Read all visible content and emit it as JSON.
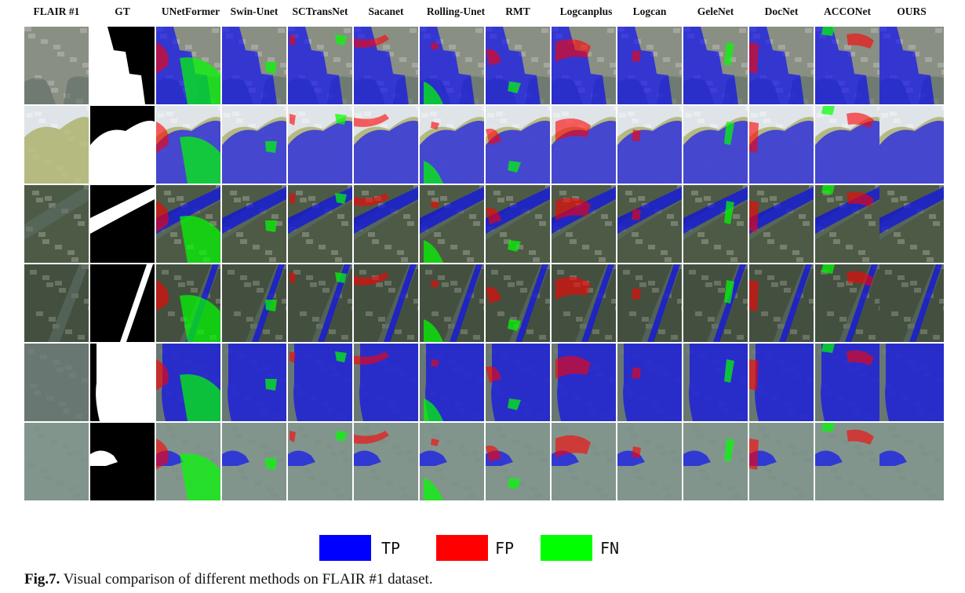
{
  "columns": [
    "FLAIR #1",
    "GT",
    "UNetFormer",
    "Swin-Unet",
    "SCTransNet",
    "Sacanet",
    "Rolling-Unet",
    "RMT",
    "Logcanplus",
    "Logcan",
    "GeleNet",
    "DocNet",
    "ACCONet",
    "OURS"
  ],
  "rows": [
    {
      "scene": "urban-river-buildings"
    },
    {
      "scene": "green-lake-snow"
    },
    {
      "scene": "forest-river-diagonal"
    },
    {
      "scene": "narrow-river-forest"
    },
    {
      "scene": "grey-water-shoreline"
    },
    {
      "scene": "pale-lake-island"
    }
  ],
  "legend": [
    {
      "label": "TP",
      "color": "#0000ff"
    },
    {
      "label": "FP",
      "color": "#ff0000"
    },
    {
      "label": "FN",
      "color": "#00ff00"
    }
  ],
  "caption": {
    "prefix": "Fig.7.",
    "text": " Visual comparison of different methods on FLAIR #1 dataset."
  }
}
